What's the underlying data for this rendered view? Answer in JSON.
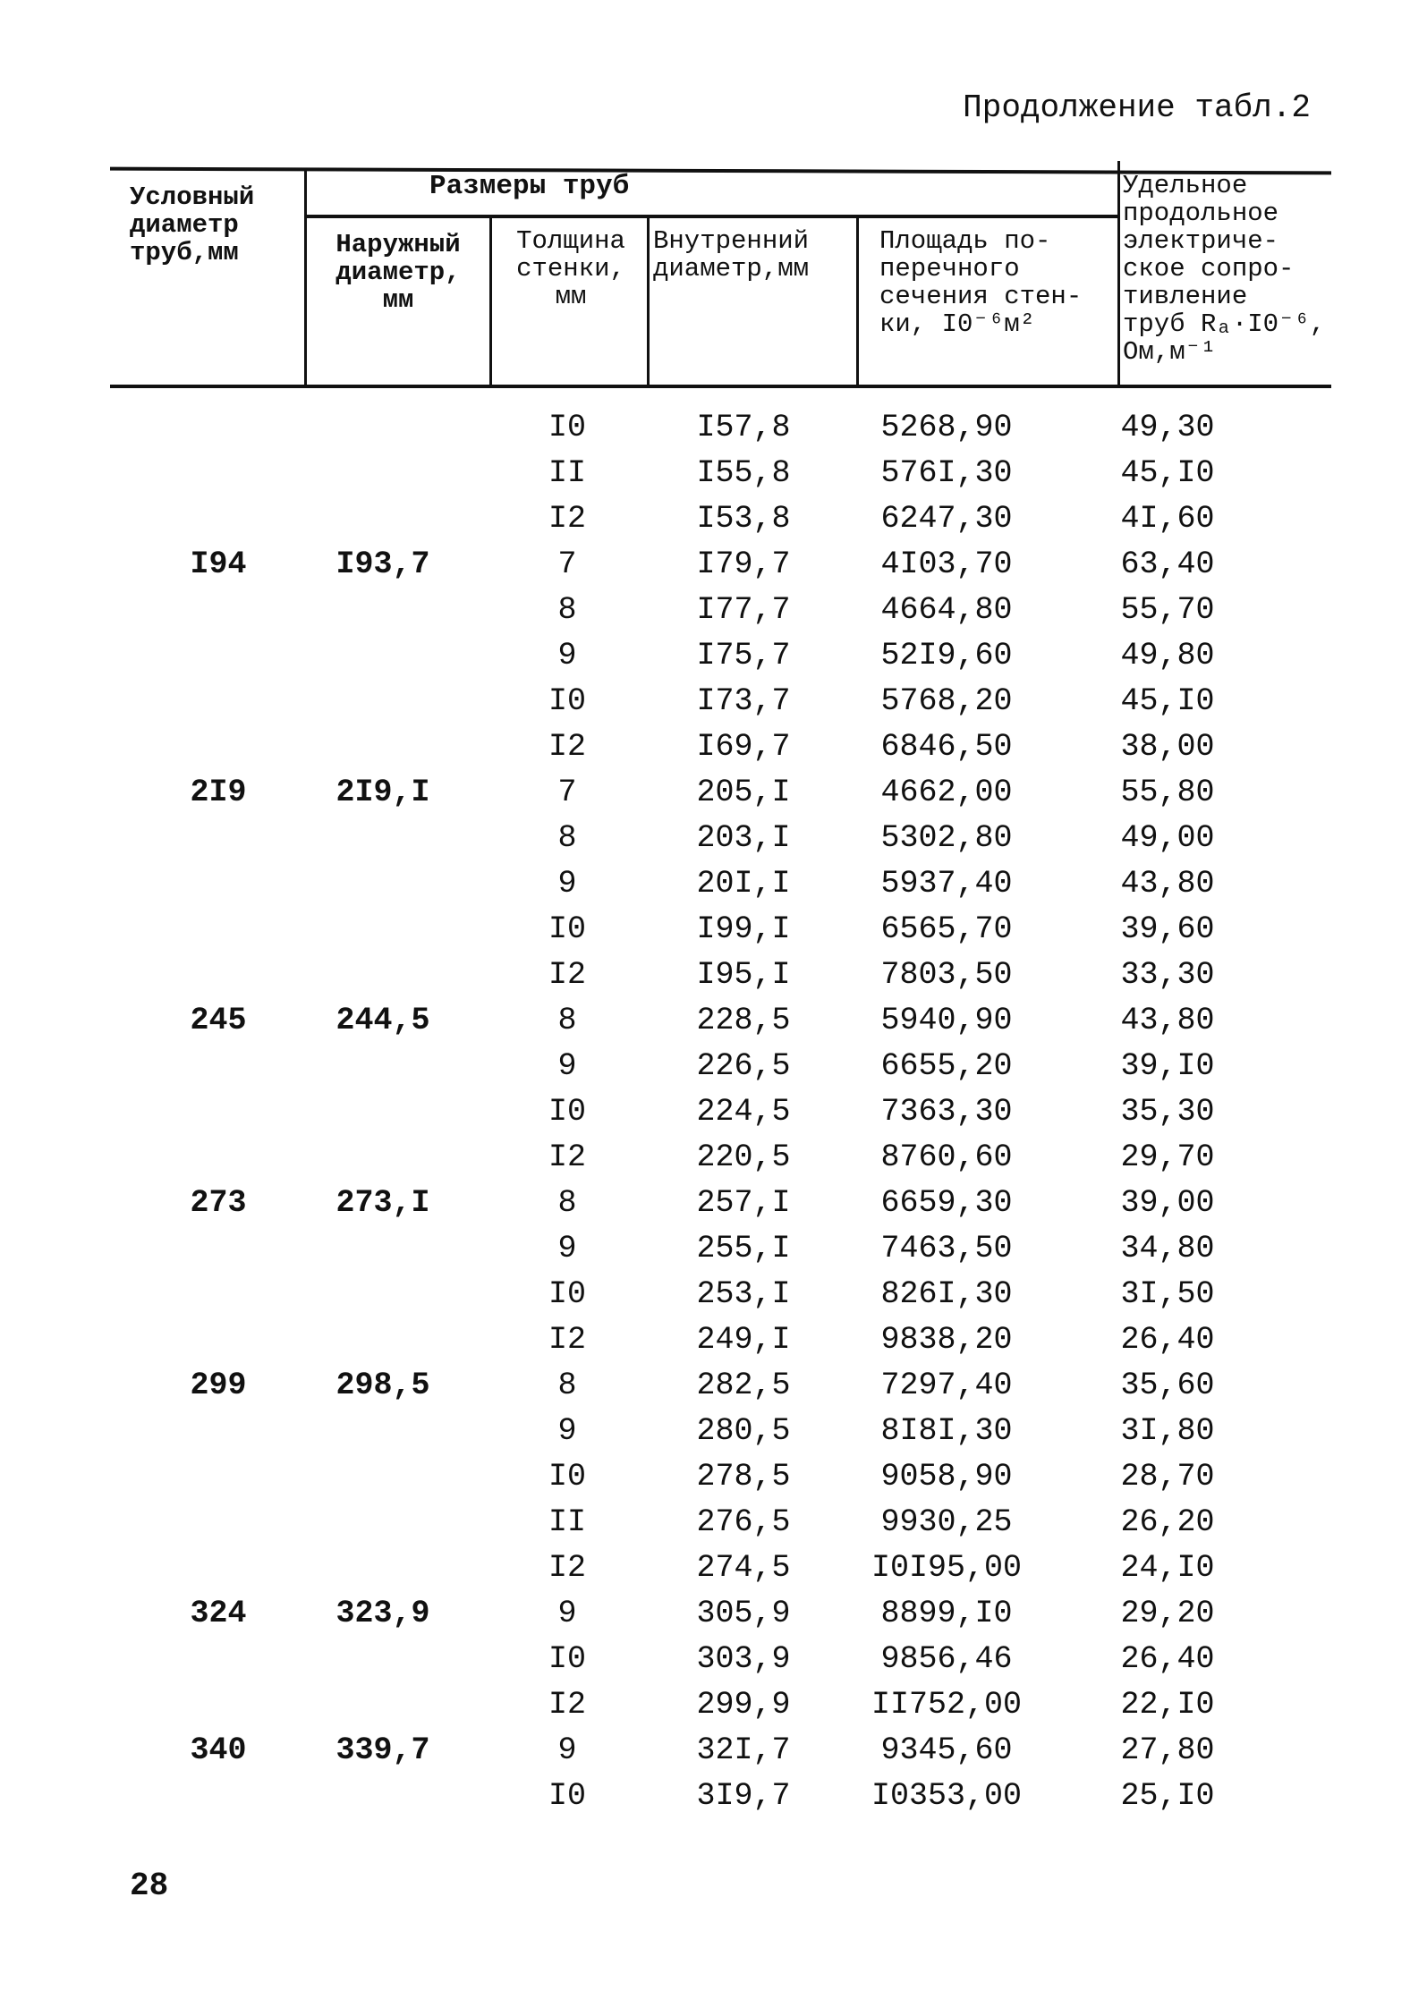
{
  "title": "Продолжение табл.2",
  "header": {
    "nominal_diameter": "Условный\nдиаметр\nтруб,мм",
    "pipe_sizes": "Размеры труб",
    "outer_diameter": "Наружный\nдиаметр,\nмм",
    "wall_thickness": "Толщина\nстенки,\nмм",
    "inner_diameter": "Внутренний\nдиаметр,мм",
    "cross_section": "Площадь по-\nперечного\nсечения стен-\nки, I0⁻⁶м²",
    "resistance": "Удельное\nпродольное\nэлектриче-\nское сопро-\nтивление\nтруб Rₐ·I0⁻⁶,\nОм,м⁻¹"
  },
  "rows": [
    [
      "",
      "",
      "I0",
      "I57,8",
      "5268,90",
      "49,30"
    ],
    [
      "",
      "",
      "II",
      "I55,8",
      "576I,30",
      "45,I0"
    ],
    [
      "",
      "",
      "I2",
      "I53,8",
      "6247,30",
      "4I,60"
    ],
    [
      "I94",
      "I93,7",
      "7",
      "I79,7",
      "4I03,70",
      "63,40"
    ],
    [
      "",
      "",
      "8",
      "I77,7",
      "4664,80",
      "55,70"
    ],
    [
      "",
      "",
      "9",
      "I75,7",
      "52I9,60",
      "49,80"
    ],
    [
      "",
      "",
      "I0",
      "I73,7",
      "5768,20",
      "45,I0"
    ],
    [
      "",
      "",
      "I2",
      "I69,7",
      "6846,50",
      "38,00"
    ],
    [
      "2I9",
      "2I9,I",
      "7",
      "205,I",
      "4662,00",
      "55,80"
    ],
    [
      "",
      "",
      "8",
      "203,I",
      "5302,80",
      "49,00"
    ],
    [
      "",
      "",
      "9",
      "20I,I",
      "5937,40",
      "43,80"
    ],
    [
      "",
      "",
      "I0",
      "I99,I",
      "6565,70",
      "39,60"
    ],
    [
      "",
      "",
      "I2",
      "I95,I",
      "7803,50",
      "33,30"
    ],
    [
      "245",
      "244,5",
      "8",
      "228,5",
      "5940,90",
      "43,80"
    ],
    [
      "",
      "",
      "9",
      "226,5",
      "6655,20",
      "39,I0"
    ],
    [
      "",
      "",
      "I0",
      "224,5",
      "7363,30",
      "35,30"
    ],
    [
      "",
      "",
      "I2",
      "220,5",
      "8760,60",
      "29,70"
    ],
    [
      "273",
      "273,I",
      "8",
      "257,I",
      "6659,30",
      "39,00"
    ],
    [
      "",
      "",
      "9",
      "255,I",
      "7463,50",
      "34,80"
    ],
    [
      "",
      "",
      "I0",
      "253,I",
      "826I,30",
      "3I,50"
    ],
    [
      "",
      "",
      "I2",
      "249,I",
      "9838,20",
      "26,40"
    ],
    [
      "299",
      "298,5",
      "8",
      "282,5",
      "7297,40",
      "35,60"
    ],
    [
      "",
      "",
      "9",
      "280,5",
      "8I8I,30",
      "3I,80"
    ],
    [
      "",
      "",
      "I0",
      "278,5",
      "9058,90",
      "28,70"
    ],
    [
      "",
      "",
      "II",
      "276,5",
      "9930,25",
      "26,20"
    ],
    [
      "",
      "",
      "I2",
      "274,5",
      "I0I95,00",
      "24,I0"
    ],
    [
      "324",
      "323,9",
      "9",
      "305,9",
      "8899,I0",
      "29,20"
    ],
    [
      "",
      "",
      "I0",
      "303,9",
      "9856,46",
      "26,40"
    ],
    [
      "",
      "",
      "I2",
      "299,9",
      "II752,00",
      "22,I0"
    ],
    [
      "340",
      "339,7",
      "9",
      "32I,7",
      "9345,60",
      "27,80"
    ],
    [
      "",
      "",
      "I0",
      "3I9,7",
      "I0353,00",
      "25,I0"
    ]
  ],
  "page_number": "28"
}
